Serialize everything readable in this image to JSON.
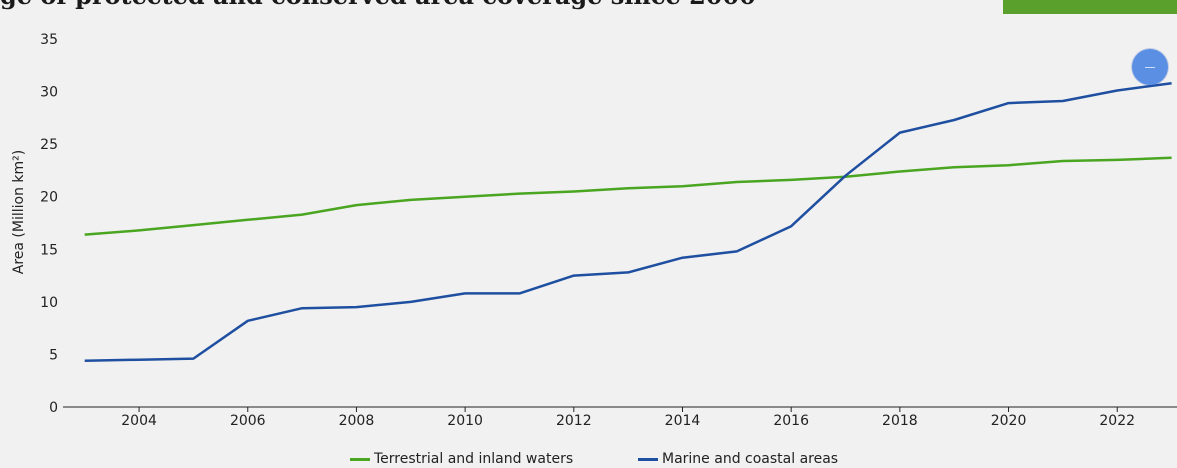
{
  "header": {
    "title_fragment": "ge of protected and conserved area coverage since 2000"
  },
  "colors": {
    "terrestrial": "#4aa520",
    "marine": "#1f4fa0",
    "accent_tab": "#5aa02c",
    "background": "#f1f1f1"
  },
  "controls": {
    "scroll_button_icon": "minus-icon"
  },
  "chart_data": {
    "type": "line",
    "title": "",
    "xlabel": "",
    "ylabel": "Area (Million km²)",
    "xlim": [
      2002.6,
      2023.1
    ],
    "ylim": [
      0,
      35
    ],
    "yticks": [
      0,
      5,
      10,
      15,
      20,
      25,
      30,
      35
    ],
    "xticks": [
      2004,
      2006,
      2008,
      2010,
      2012,
      2014,
      2016,
      2018,
      2020,
      2022
    ],
    "grid": false,
    "legend_position": "bottom",
    "x": [
      2003,
      2004,
      2005,
      2006,
      2007,
      2008,
      2009,
      2010,
      2011,
      2012,
      2013,
      2014,
      2015,
      2016,
      2017,
      2018,
      2019,
      2020,
      2021,
      2022,
      2023
    ],
    "series": [
      {
        "name": "Terrestrial and inland waters",
        "color": "#4aa520",
        "values": [
          16.4,
          16.8,
          17.3,
          17.8,
          18.3,
          19.2,
          19.7,
          20.0,
          20.3,
          20.5,
          20.8,
          21.0,
          21.4,
          21.6,
          21.9,
          22.4,
          22.8,
          23.0,
          23.4,
          23.5,
          23.7
        ]
      },
      {
        "name": "Marine and coastal areas",
        "color": "#1f4fa0",
        "values": [
          4.4,
          4.5,
          4.6,
          8.2,
          9.4,
          9.5,
          10.0,
          10.8,
          10.8,
          12.5,
          12.8,
          14.2,
          14.8,
          17.2,
          22.0,
          26.1,
          27.3,
          28.9,
          29.1,
          30.1,
          30.8
        ]
      }
    ]
  }
}
